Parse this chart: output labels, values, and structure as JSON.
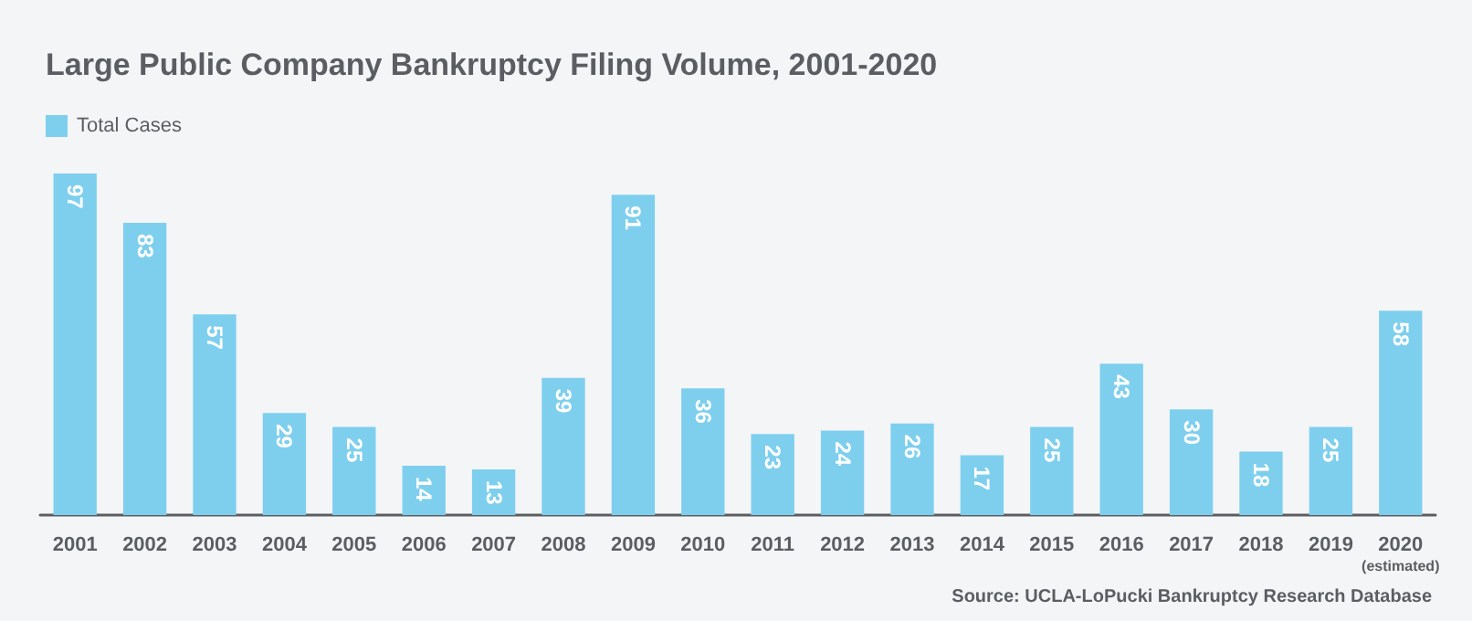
{
  "chart_data": {
    "type": "bar",
    "title": "Large Public Company Bankruptcy Filing Volume, 2001-2020",
    "categories": [
      "2001",
      "2002",
      "2003",
      "2004",
      "2005",
      "2006",
      "2007",
      "2008",
      "2009",
      "2010",
      "2011",
      "2012",
      "2013",
      "2014",
      "2015",
      "2016",
      "2017",
      "2018",
      "2019",
      "2020\n(estimated)"
    ],
    "series": [
      {
        "name": "Total Cases",
        "color": "#7ecfee",
        "values": [
          97,
          83,
          57,
          29,
          25,
          14,
          13,
          39,
          91,
          36,
          23,
          24,
          26,
          17,
          25,
          43,
          30,
          18,
          25,
          58
        ]
      }
    ],
    "data_labels": true,
    "legend": "top left",
    "annotations": [
      "Source: UCLA-LoPucki Bankruptcy Research Database"
    ]
  }
}
